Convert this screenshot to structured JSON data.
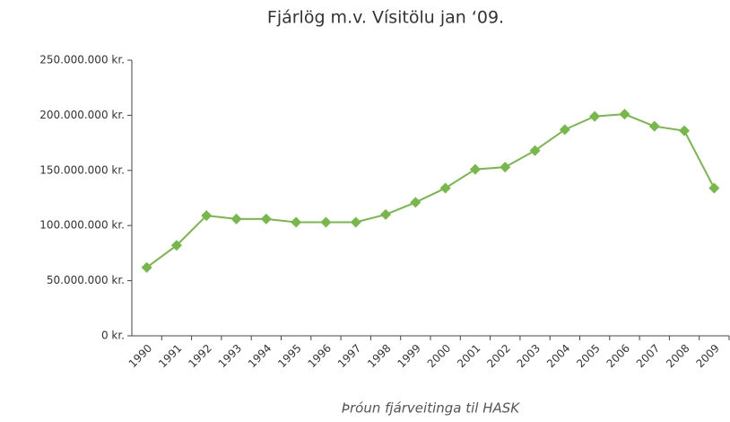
{
  "chart_data": {
    "type": "line",
    "title": "Fjárlög m.v. Vísitölu jan ‘09.",
    "x_label": "Þróun fjárveitinga til HASK",
    "categories": [
      "1990",
      "1991",
      "1992",
      "1993",
      "1994",
      "1995",
      "1996",
      "1997",
      "1998",
      "1999",
      "2000",
      "2001",
      "2002",
      "2003",
      "2004",
      "2005",
      "2006",
      "2007",
      "2008",
      "2009"
    ],
    "series": [
      {
        "name": "Fjárlög",
        "color": "#77b948",
        "values": [
          62000000,
          82000000,
          109000000,
          106000000,
          106000000,
          103000000,
          103000000,
          103000000,
          110000000,
          121000000,
          134000000,
          151000000,
          153000000,
          168000000,
          187000000,
          199000000,
          201000000,
          190000000,
          186000000,
          134000000
        ]
      }
    ],
    "ylim": [
      0,
      250000000
    ],
    "yticks": [
      {
        "value": 0,
        "label": "0 kr."
      },
      {
        "value": 50000000,
        "label": "50.000.000 kr."
      },
      {
        "value": 100000000,
        "label": "100.000.000 kr."
      },
      {
        "value": 150000000,
        "label": "150.000.000 kr."
      },
      {
        "value": 200000000,
        "label": "200.000.000 kr."
      },
      {
        "value": 250000000,
        "label": "250.000.000 kr."
      }
    ],
    "grid": false
  }
}
